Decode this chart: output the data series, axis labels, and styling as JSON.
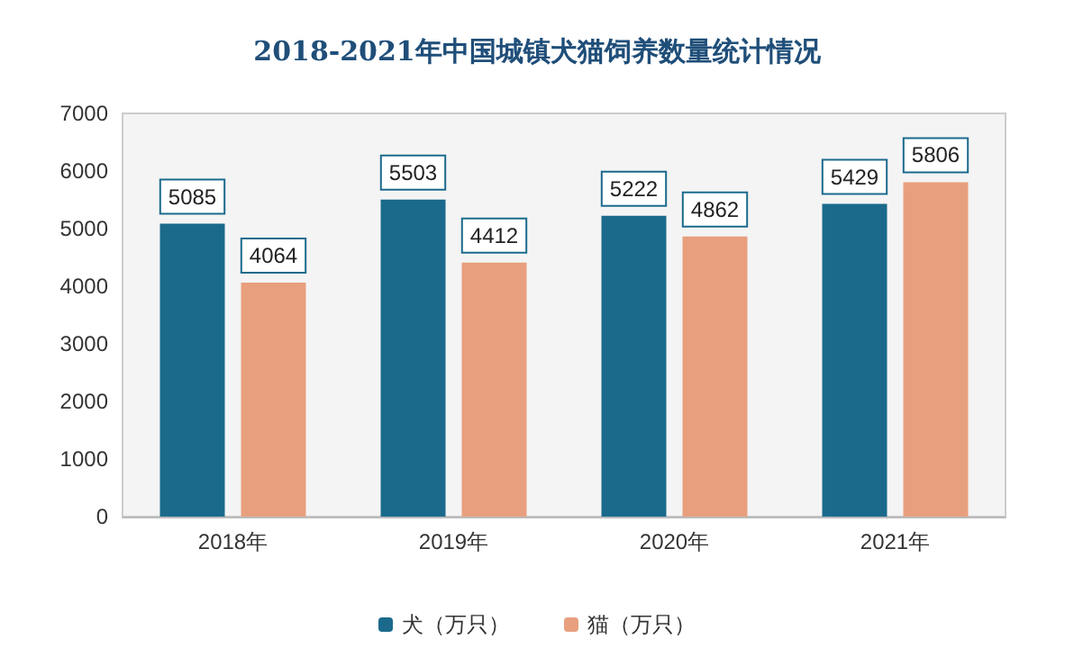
{
  "chart_data": {
    "type": "bar",
    "title": "2018-2021年中国城镇犬猫饲养数量统计情况",
    "categories": [
      "2018年",
      "2019年",
      "2020年",
      "2021年"
    ],
    "series": [
      {
        "name": "犬（万只）",
        "color": "#1b6a8c",
        "values": [
          5085,
          5503,
          5222,
          5429
        ]
      },
      {
        "name": "猫（万只）",
        "color": "#e89f7e",
        "values": [
          4064,
          4412,
          4862,
          5806
        ]
      }
    ],
    "ylim": [
      0,
      7000
    ],
    "yticks": [
      0,
      1000,
      2000,
      3000,
      4000,
      5000,
      6000,
      7000
    ],
    "grid": false,
    "legend": "bottom",
    "data_labels": true
  }
}
